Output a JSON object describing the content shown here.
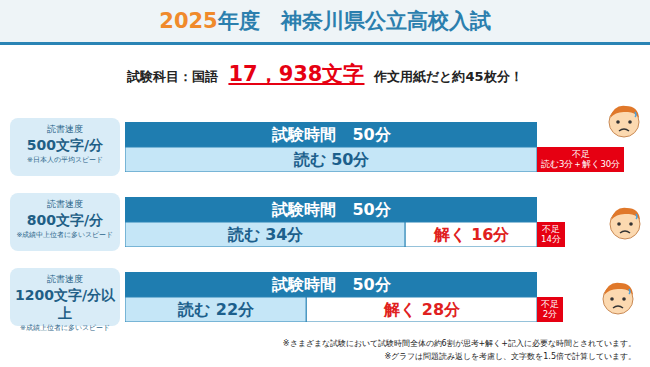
{
  "chart_data": {
    "type": "bar",
    "orientation": "horizontal",
    "stacked": true,
    "data_labels": true,
    "tick_labels": false,
    "grid": false,
    "title": "2025年度　神奈川県公立高校入試",
    "subtitle": [
      "試験科目：国語",
      "17，938文字",
      "作文用紙だと約45枚分！"
    ],
    "categories": [
      "500文字/分",
      "800文字/分",
      "1200文字/分以上"
    ],
    "category_headings": [
      "読書速度",
      "読書速度",
      "読書速度"
    ],
    "category_notes": [
      "※日本人の平均スピード",
      "※成績中上位者に多いスピード",
      "※成績上位者に多いスピード"
    ],
    "xlim": [
      0,
      50
    ],
    "totals": {
      "name": "試験時間",
      "color": "#1f7db0",
      "values": [
        50,
        50,
        50
      ],
      "value_labels": [
        "試験時間　50分",
        "試験時間　50分",
        "試験時間　50分"
      ]
    },
    "series": [
      {
        "name": "読む",
        "color": "#c5e6f7",
        "values": [
          50,
          34,
          22
        ],
        "value_labels": [
          "読む 50分",
          "読む 34分",
          "読む 22分"
        ]
      },
      {
        "name": "解く",
        "color": "#ffffff",
        "values": [
          null,
          16,
          28
        ],
        "value_labels": [
          null,
          "解く 16分",
          "解く 28分"
        ]
      }
    ],
    "shortfalls": {
      "color": "#e60012",
      "labels": [
        [
          "不足",
          "読む3分＋解く30分"
        ],
        [
          "不足",
          "14分"
        ],
        [
          "不足",
          "2分"
        ]
      ]
    },
    "notes": [
      "※さまざまな試験において試験時間全体の約6割が思考+解く+記入に必要な時間とされています。",
      "※グラフは問題読み返しを考慮し、文字数を1.5倍で計算しています。"
    ]
  }
}
